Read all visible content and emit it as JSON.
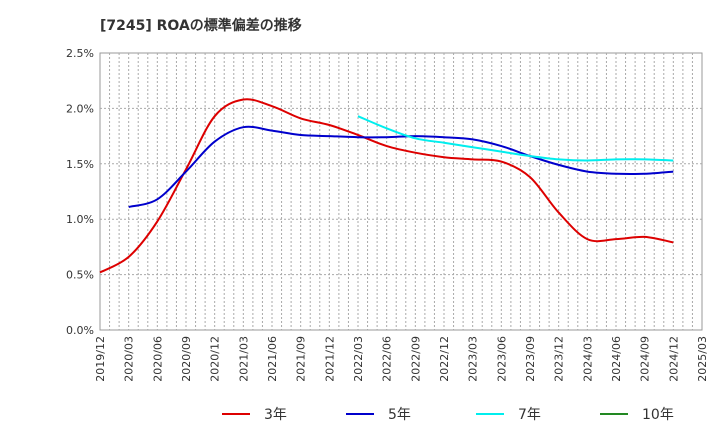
{
  "chart_data": {
    "type": "line",
    "title": "[7245]  ROAの標準偏差の推移",
    "xlabel": "",
    "ylabel": "",
    "ylim": [
      0,
      2.5
    ],
    "yticks": [
      "0.0%",
      "0.5%",
      "1.0%",
      "1.5%",
      "2.0%",
      "2.5%"
    ],
    "x_tick_labels": [
      "2019/12",
      "2020/03",
      "2020/06",
      "2020/09",
      "2020/12",
      "2021/03",
      "2021/06",
      "2021/09",
      "2021/12",
      "2022/03",
      "2022/06",
      "2022/09",
      "2022/12",
      "2023/03",
      "2023/06",
      "2023/09",
      "2023/12",
      "2024/03",
      "2024/06",
      "2024/09",
      "2024/12",
      "2025/03"
    ],
    "grid": true,
    "legend_position": "bottom",
    "series": [
      {
        "name": "3年",
        "color": "#dd0000",
        "points": [
          [
            "2019/12",
            0.52
          ],
          [
            "2020/03",
            0.66
          ],
          [
            "2020/06",
            0.98
          ],
          [
            "2020/09",
            1.45
          ],
          [
            "2020/12",
            1.93
          ],
          [
            "2021/03",
            2.08
          ],
          [
            "2021/06",
            2.02
          ],
          [
            "2021/09",
            1.91
          ],
          [
            "2021/12",
            1.85
          ],
          [
            "2022/03",
            1.76
          ],
          [
            "2022/06",
            1.66
          ],
          [
            "2022/09",
            1.6
          ],
          [
            "2022/12",
            1.56
          ],
          [
            "2023/03",
            1.54
          ],
          [
            "2023/06",
            1.52
          ],
          [
            "2023/09",
            1.38
          ],
          [
            "2023/12",
            1.06
          ],
          [
            "2024/03",
            0.82
          ],
          [
            "2024/06",
            0.82
          ],
          [
            "2024/09",
            0.84
          ],
          [
            "2024/12",
            0.79
          ]
        ]
      },
      {
        "name": "5年",
        "color": "#0000cc",
        "points": [
          [
            "2020/03",
            1.11
          ],
          [
            "2020/06",
            1.18
          ],
          [
            "2020/09",
            1.43
          ],
          [
            "2020/12",
            1.7
          ],
          [
            "2021/03",
            1.83
          ],
          [
            "2021/06",
            1.8
          ],
          [
            "2021/09",
            1.76
          ],
          [
            "2021/12",
            1.75
          ],
          [
            "2022/03",
            1.74
          ],
          [
            "2022/06",
            1.74
          ],
          [
            "2022/09",
            1.75
          ],
          [
            "2022/12",
            1.74
          ],
          [
            "2023/03",
            1.72
          ],
          [
            "2023/06",
            1.66
          ],
          [
            "2023/09",
            1.57
          ],
          [
            "2023/12",
            1.49
          ],
          [
            "2024/03",
            1.43
          ],
          [
            "2024/06",
            1.41
          ],
          [
            "2024/09",
            1.41
          ],
          [
            "2024/12",
            1.43
          ]
        ]
      },
      {
        "name": "7年",
        "color": "#00eeee",
        "points": [
          [
            "2022/03",
            1.93
          ],
          [
            "2022/06",
            1.82
          ],
          [
            "2022/09",
            1.73
          ],
          [
            "2022/12",
            1.69
          ],
          [
            "2023/03",
            1.65
          ],
          [
            "2023/06",
            1.61
          ],
          [
            "2023/09",
            1.57
          ],
          [
            "2023/12",
            1.54
          ],
          [
            "2024/03",
            1.53
          ],
          [
            "2024/06",
            1.54
          ],
          [
            "2024/09",
            1.54
          ],
          [
            "2024/12",
            1.53
          ]
        ]
      },
      {
        "name": "10年",
        "color": "#228822",
        "points": []
      }
    ]
  }
}
